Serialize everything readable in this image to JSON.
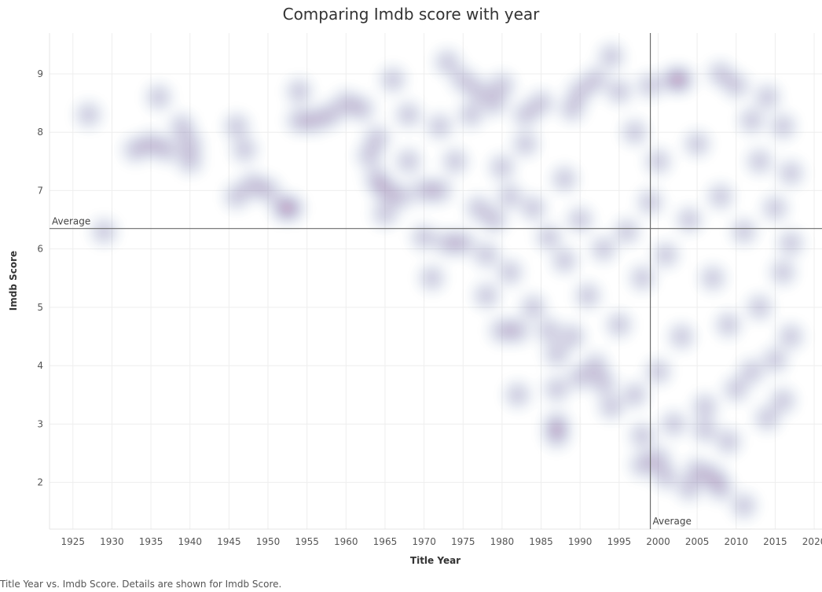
{
  "caption": "Title Year vs. Imdb Score.  Details are shown for Imdb Score.",
  "chart_data": {
    "type": "scatter",
    "title": "Comparing Imdb score with year",
    "xlabel": "Title Year",
    "ylabel": "Imdb Score",
    "xlim": [
      1922,
      2021
    ],
    "ylim": [
      1.2,
      9.7
    ],
    "x_ticks": [
      1925,
      1930,
      1935,
      1940,
      1945,
      1950,
      1955,
      1960,
      1965,
      1970,
      1975,
      1980,
      1985,
      1990,
      1995,
      2000,
      2005,
      2010,
      2015,
      2020
    ],
    "y_ticks": [
      2,
      3,
      4,
      5,
      6,
      7,
      8,
      9
    ],
    "grid": true,
    "rendering": "density heatmap",
    "colors": {
      "low": "#4a6ea8",
      "mid": "#c9558f",
      "high": "#f5b43c",
      "peak": "#c81d3f"
    },
    "reference_lines": [
      {
        "axis": "x",
        "label": "Average",
        "value": 1999
      },
      {
        "axis": "y",
        "label": "Average",
        "value": 6.35
      }
    ],
    "points": [
      [
        1927,
        8.3
      ],
      [
        1929,
        6.3
      ],
      [
        1933,
        7.7
      ],
      [
        1935,
        7.8
      ],
      [
        1936,
        8.6
      ],
      [
        1937,
        7.7
      ],
      [
        1939,
        8.1
      ],
      [
        1940,
        7.8
      ],
      [
        1940,
        7.5
      ],
      [
        1946,
        6.9
      ],
      [
        1946,
        8.1
      ],
      [
        1947,
        7.7
      ],
      [
        1948,
        7.1
      ],
      [
        1950,
        7.0
      ],
      [
        1952,
        6.7
      ],
      [
        1953,
        6.7
      ],
      [
        1954,
        8.7
      ],
      [
        1954,
        8.2
      ],
      [
        1956,
        8.2
      ],
      [
        1958,
        8.3
      ],
      [
        1960,
        8.5
      ],
      [
        1962,
        8.4
      ],
      [
        1963,
        7.6
      ],
      [
        1964,
        7.9
      ],
      [
        1964,
        7.2
      ],
      [
        1965,
        6.6
      ],
      [
        1965,
        7.0
      ],
      [
        1966,
        8.9
      ],
      [
        1967,
        6.9
      ],
      [
        1968,
        8.3
      ],
      [
        1968,
        7.5
      ],
      [
        1970,
        6.2
      ],
      [
        1970,
        7.0
      ],
      [
        1971,
        5.5
      ],
      [
        1972,
        8.1
      ],
      [
        1972,
        7.0
      ],
      [
        1973,
        9.2
      ],
      [
        1973,
        6.1
      ],
      [
        1974,
        7.5
      ],
      [
        1975,
        8.9
      ],
      [
        1975,
        6.1
      ],
      [
        1976,
        8.3
      ],
      [
        1977,
        8.7
      ],
      [
        1977,
        6.7
      ],
      [
        1978,
        5.9
      ],
      [
        1978,
        5.2
      ],
      [
        1979,
        8.5
      ],
      [
        1979,
        6.5
      ],
      [
        1980,
        8.8
      ],
      [
        1980,
        4.6
      ],
      [
        1980,
        7.4
      ],
      [
        1981,
        5.6
      ],
      [
        1981,
        6.9
      ],
      [
        1982,
        3.5
      ],
      [
        1982,
        4.6
      ],
      [
        1983,
        7.8
      ],
      [
        1983,
        8.3
      ],
      [
        1984,
        5.0
      ],
      [
        1984,
        6.7
      ],
      [
        1985,
        8.5
      ],
      [
        1986,
        4.6
      ],
      [
        1986,
        6.2
      ],
      [
        1987,
        3.6
      ],
      [
        1987,
        3.0
      ],
      [
        1987,
        2.8
      ],
      [
        1987,
        4.2
      ],
      [
        1988,
        5.8
      ],
      [
        1988,
        7.2
      ],
      [
        1989,
        4.5
      ],
      [
        1989,
        8.4
      ],
      [
        1990,
        3.8
      ],
      [
        1990,
        6.5
      ],
      [
        1990,
        8.7
      ],
      [
        1991,
        5.2
      ],
      [
        1992,
        4.0
      ],
      [
        1992,
        8.9
      ],
      [
        1993,
        3.7
      ],
      [
        1993,
        6.0
      ],
      [
        1994,
        9.3
      ],
      [
        1994,
        3.3
      ],
      [
        1995,
        8.7
      ],
      [
        1995,
        4.7
      ],
      [
        1996,
        6.3
      ],
      [
        1997,
        3.5
      ],
      [
        1997,
        8.0
      ],
      [
        1998,
        2.8
      ],
      [
        1998,
        2.3
      ],
      [
        1998,
        5.5
      ],
      [
        1999,
        8.8
      ],
      [
        1999,
        6.8
      ],
      [
        2000,
        2.4
      ],
      [
        2000,
        3.9
      ],
      [
        2000,
        7.5
      ],
      [
        2001,
        2.1
      ],
      [
        2001,
        5.9
      ],
      [
        2002,
        8.9
      ],
      [
        2002,
        3.0
      ],
      [
        2003,
        8.9
      ],
      [
        2003,
        4.5
      ],
      [
        2004,
        1.9
      ],
      [
        2004,
        6.5
      ],
      [
        2005,
        2.2
      ],
      [
        2005,
        7.8
      ],
      [
        2006,
        2.9
      ],
      [
        2006,
        3.3
      ],
      [
        2007,
        2.1
      ],
      [
        2007,
        5.5
      ],
      [
        2008,
        1.9
      ],
      [
        2008,
        9.0
      ],
      [
        2008,
        6.9
      ],
      [
        2009,
        2.7
      ],
      [
        2009,
        4.7
      ],
      [
        2010,
        8.8
      ],
      [
        2010,
        3.6
      ],
      [
        2011,
        1.6
      ],
      [
        2011,
        6.3
      ],
      [
        2012,
        8.2
      ],
      [
        2012,
        3.9
      ],
      [
        2013,
        7.5
      ],
      [
        2013,
        5.0
      ],
      [
        2014,
        3.1
      ],
      [
        2014,
        8.6
      ],
      [
        2015,
        4.1
      ],
      [
        2015,
        6.7
      ],
      [
        2016,
        3.4
      ],
      [
        2016,
        8.1
      ],
      [
        2016,
        5.6
      ],
      [
        2017,
        7.3
      ],
      [
        2017,
        4.5
      ],
      [
        2017,
        6.1
      ]
    ]
  }
}
